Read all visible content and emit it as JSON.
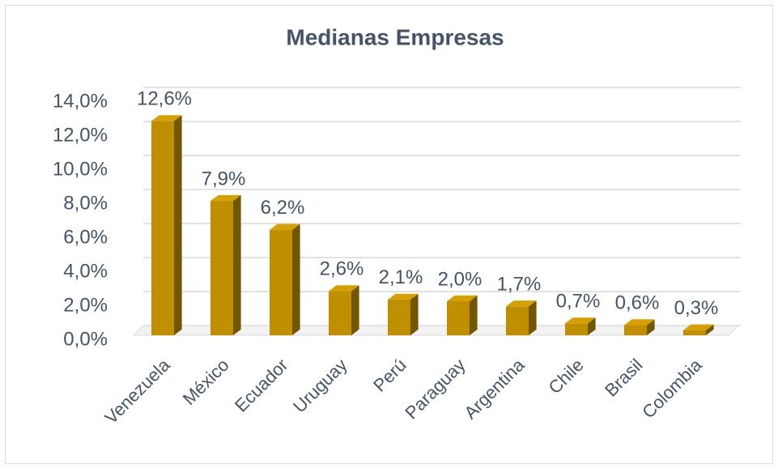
{
  "chart_data": {
    "type": "bar",
    "title": "Medianas Empresas",
    "categories": [
      "Venezuela",
      "México",
      "Ecuador",
      "Uruguay",
      "Perú",
      "Paraguay",
      "Argentina",
      "Chile",
      "Brasil",
      "Colombia"
    ],
    "values": [
      12.6,
      7.9,
      6.2,
      2.6,
      2.1,
      2.0,
      1.7,
      0.7,
      0.6,
      0.3
    ],
    "value_labels": [
      "12,6%",
      "7,9%",
      "6,2%",
      "2,6%",
      "2,1%",
      "2,0%",
      "1,7%",
      "0,7%",
      "0,6%",
      "0,3%"
    ],
    "color": "#bf8f00",
    "ylim": [
      0,
      14
    ],
    "yticks": [
      {
        "value": 0,
        "label": "0,0%"
      },
      {
        "value": 2,
        "label": "2,0%"
      },
      {
        "value": 4,
        "label": "4,0%"
      },
      {
        "value": 6,
        "label": "6,0%"
      },
      {
        "value": 8,
        "label": "8,0%"
      },
      {
        "value": 10,
        "label": "10,0%"
      },
      {
        "value": 12,
        "label": "12,0%"
      },
      {
        "value": 14,
        "label": "14,0%"
      }
    ],
    "grid": true
  }
}
